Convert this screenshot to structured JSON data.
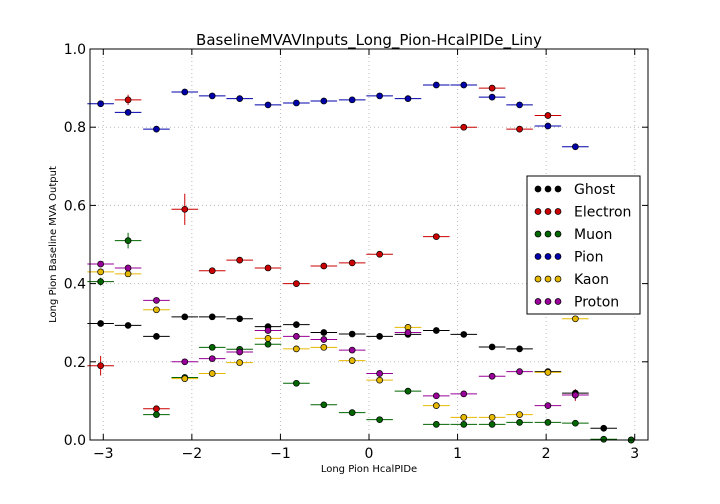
{
  "chart_data": {
    "type": "scatter",
    "title": "BaselineMVAVInputs_Long_Pion-HcalPIDe_Liny",
    "xlabel": "Long Pion HcalPIDe",
    "ylabel": "Long Pion Baseline MVA Output",
    "xlim": [
      -3.15,
      3.15
    ],
    "ylim": [
      0.0,
      1.0
    ],
    "xticks": [
      -3,
      -2,
      -1,
      0,
      1,
      2,
      3
    ],
    "xtick_labels": [
      "−3",
      "−2",
      "−1",
      "0",
      "1",
      "2",
      "3"
    ],
    "yticks": [
      0.0,
      0.2,
      0.4,
      0.6,
      0.8,
      1.0
    ],
    "ytick_labels": [
      "0.0",
      "0.2",
      "0.4",
      "0.6",
      "0.8",
      "1.0"
    ],
    "grid": true,
    "legend": "center-right",
    "xerr": 0.15,
    "series": [
      {
        "name": "Ghost",
        "color": "#000000",
        "points": [
          [
            -3.03,
            0.298,
            0.004
          ],
          [
            -2.72,
            0.293,
            0.004
          ],
          [
            -2.4,
            0.265,
            0.004
          ],
          [
            -2.08,
            0.315,
            0.004
          ],
          [
            -1.77,
            0.315,
            0.004
          ],
          [
            -1.46,
            0.31,
            0.004
          ],
          [
            -1.14,
            0.29,
            0.004
          ],
          [
            -0.82,
            0.295,
            0.004
          ],
          [
            -0.51,
            0.275,
            0.004
          ],
          [
            -0.19,
            0.271,
            0.004
          ],
          [
            0.12,
            0.265,
            0.004
          ],
          [
            0.44,
            0.27,
            0.004
          ],
          [
            0.76,
            0.28,
            0.004
          ],
          [
            1.07,
            0.27,
            0.004
          ],
          [
            1.39,
            0.238,
            0.004
          ],
          [
            1.7,
            0.233,
            0.004
          ],
          [
            2.02,
            0.175,
            0.004
          ],
          [
            2.33,
            0.12,
            0.005
          ],
          [
            2.65,
            0.03,
            0.004
          ],
          [
            2.96,
            0.0,
            0.004
          ]
        ]
      },
      {
        "name": "Electron",
        "color": "#cc0000",
        "points": [
          [
            -3.03,
            0.19,
            0.025
          ],
          [
            -2.72,
            0.87,
            0.013
          ],
          [
            -2.4,
            0.08,
            0.006
          ],
          [
            -2.08,
            0.59,
            0.04
          ],
          [
            -1.77,
            0.433,
            0.005
          ],
          [
            -1.46,
            0.46,
            0.005
          ],
          [
            -1.14,
            0.44,
            0.005
          ],
          [
            -0.82,
            0.4,
            0.004
          ],
          [
            -0.51,
            0.445,
            0.004
          ],
          [
            -0.19,
            0.453,
            0.004
          ],
          [
            0.12,
            0.475,
            0.004
          ],
          [
            0.76,
            0.52,
            0.004
          ],
          [
            1.07,
            0.8,
            0.004
          ],
          [
            1.39,
            0.9,
            0.004
          ],
          [
            1.7,
            0.795,
            0.004
          ],
          [
            2.02,
            0.83,
            0.006
          ],
          [
            2.33,
            0.115,
            0.015
          ]
        ]
      },
      {
        "name": "Muon",
        "color": "#006600",
        "points": [
          [
            -3.03,
            0.405,
            0.01
          ],
          [
            -2.72,
            0.51,
            0.02
          ],
          [
            -2.4,
            0.065,
            0.005
          ],
          [
            -2.08,
            0.16,
            0.005
          ],
          [
            -1.77,
            0.237,
            0.005
          ],
          [
            -1.46,
            0.232,
            0.005
          ],
          [
            -1.14,
            0.245,
            0.004
          ],
          [
            -0.82,
            0.145,
            0.004
          ],
          [
            -0.51,
            0.09,
            0.004
          ],
          [
            -0.19,
            0.07,
            0.004
          ],
          [
            0.12,
            0.052,
            0.004
          ],
          [
            0.44,
            0.125,
            0.004
          ],
          [
            0.76,
            0.04,
            0.004
          ],
          [
            1.07,
            0.04,
            0.004
          ],
          [
            1.39,
            0.04,
            0.004
          ],
          [
            1.7,
            0.045,
            0.004
          ],
          [
            2.02,
            0.045,
            0.004
          ],
          [
            2.33,
            0.043,
            0.004
          ],
          [
            2.65,
            0.002,
            0.004
          ],
          [
            2.96,
            0.0,
            0.004
          ]
        ]
      },
      {
        "name": "Pion",
        "color": "#0000aa",
        "points": [
          [
            -3.03,
            0.86,
            0.004
          ],
          [
            -2.72,
            0.838,
            0.004
          ],
          [
            -2.4,
            0.795,
            0.004
          ],
          [
            -2.08,
            0.89,
            0.004
          ],
          [
            -1.77,
            0.88,
            0.004
          ],
          [
            -1.46,
            0.873,
            0.004
          ],
          [
            -1.14,
            0.857,
            0.004
          ],
          [
            -0.82,
            0.862,
            0.004
          ],
          [
            -0.51,
            0.867,
            0.004
          ],
          [
            -0.19,
            0.87,
            0.004
          ],
          [
            0.12,
            0.88,
            0.004
          ],
          [
            0.44,
            0.873,
            0.004
          ],
          [
            0.76,
            0.908,
            0.004
          ],
          [
            1.07,
            0.908,
            0.004
          ],
          [
            1.39,
            0.877,
            0.004
          ],
          [
            1.7,
            0.857,
            0.004
          ],
          [
            2.02,
            0.803,
            0.006
          ],
          [
            2.33,
            0.75,
            0.008
          ]
        ]
      },
      {
        "name": "Kaon",
        "color": "#e6b800",
        "points": [
          [
            -3.03,
            0.43,
            0.004
          ],
          [
            -2.72,
            0.425,
            0.004
          ],
          [
            -2.4,
            0.333,
            0.004
          ],
          [
            -2.08,
            0.157,
            0.004
          ],
          [
            -1.77,
            0.17,
            0.004
          ],
          [
            -1.46,
            0.198,
            0.004
          ],
          [
            -1.14,
            0.26,
            0.004
          ],
          [
            -0.82,
            0.233,
            0.004
          ],
          [
            -0.51,
            0.237,
            0.004
          ],
          [
            -0.19,
            0.203,
            0.004
          ],
          [
            0.12,
            0.153,
            0.004
          ],
          [
            0.44,
            0.288,
            0.004
          ],
          [
            0.76,
            0.088,
            0.004
          ],
          [
            1.07,
            0.058,
            0.004
          ],
          [
            1.39,
            0.058,
            0.004
          ],
          [
            1.7,
            0.065,
            0.004
          ],
          [
            2.02,
            0.173,
            0.004
          ],
          [
            2.33,
            0.31,
            0.006
          ]
        ]
      },
      {
        "name": "Proton",
        "color": "#990099",
        "points": [
          [
            -3.03,
            0.45,
            0.004
          ],
          [
            -2.72,
            0.44,
            0.006
          ],
          [
            -2.4,
            0.357,
            0.004
          ],
          [
            -2.08,
            0.2,
            0.004
          ],
          [
            -1.77,
            0.208,
            0.004
          ],
          [
            -1.46,
            0.225,
            0.004
          ],
          [
            -1.14,
            0.28,
            0.004
          ],
          [
            -0.82,
            0.265,
            0.004
          ],
          [
            -0.51,
            0.257,
            0.004
          ],
          [
            -0.19,
            0.23,
            0.004
          ],
          [
            0.12,
            0.17,
            0.004
          ],
          [
            0.44,
            0.275,
            0.004
          ],
          [
            0.76,
            0.113,
            0.004
          ],
          [
            1.07,
            0.118,
            0.004
          ],
          [
            1.39,
            0.163,
            0.004
          ],
          [
            1.7,
            0.175,
            0.004
          ],
          [
            2.02,
            0.088,
            0.004
          ],
          [
            2.33,
            0.115,
            0.012
          ]
        ]
      }
    ]
  }
}
